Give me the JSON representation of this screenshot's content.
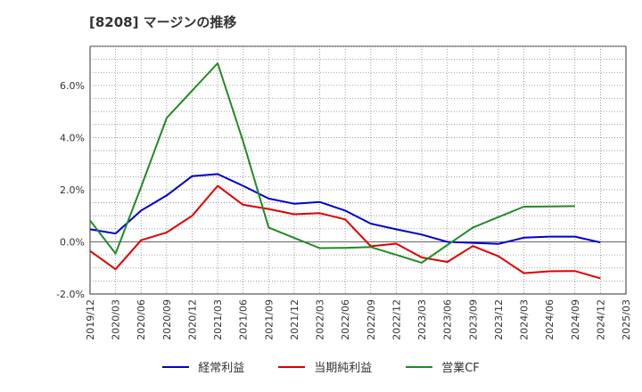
{
  "title": "[8208]  マージンの推移",
  "chart_data": {
    "type": "line",
    "title": "[8208]  マージンの推移",
    "xlabel": "",
    "ylabel": "",
    "ylim": [
      -2.0,
      7.5
    ],
    "yticks": [
      -2.0,
      0.0,
      2.0,
      4.0,
      6.0
    ],
    "ytick_labels": [
      "-2.0%",
      "0.0%",
      "2.0%",
      "4.0%",
      "6.0%"
    ],
    "x": [
      "2019/12",
      "2020/03",
      "2020/06",
      "2020/09",
      "2020/12",
      "2021/03",
      "2021/06",
      "2021/09",
      "2021/12",
      "2022/03",
      "2022/06",
      "2022/09",
      "2022/12",
      "2023/03",
      "2023/06",
      "2023/09",
      "2023/12",
      "2024/03",
      "2024/06",
      "2024/09",
      "2024/12",
      "2025/03"
    ],
    "grid": true,
    "legend_position": "bottom",
    "series": [
      {
        "name": "経常利益",
        "color": "#0000cc",
        "values": [
          0.48,
          0.32,
          1.2,
          1.78,
          2.52,
          2.6,
          2.15,
          1.66,
          1.46,
          1.53,
          1.2,
          0.7,
          0.48,
          0.28,
          0.0,
          -0.04,
          -0.08,
          0.16,
          0.2,
          0.2,
          -0.02,
          null
        ]
      },
      {
        "name": "当期純利益",
        "color": "#dd0000",
        "values": [
          -0.35,
          -1.05,
          0.06,
          0.36,
          1.0,
          2.15,
          1.42,
          1.26,
          1.06,
          1.1,
          0.86,
          -0.17,
          -0.07,
          -0.6,
          -0.77,
          -0.16,
          -0.55,
          -1.2,
          -1.13,
          -1.12,
          -1.4,
          null
        ]
      },
      {
        "name": "営業CF",
        "color": "#228b22",
        "values": [
          0.82,
          -0.45,
          2.1,
          4.75,
          5.8,
          6.85,
          3.85,
          0.55,
          0.15,
          -0.24,
          -0.23,
          -0.2,
          -0.5,
          -0.8,
          -0.12,
          0.55,
          0.95,
          1.35,
          1.36,
          1.37,
          null,
          null
        ]
      }
    ]
  }
}
